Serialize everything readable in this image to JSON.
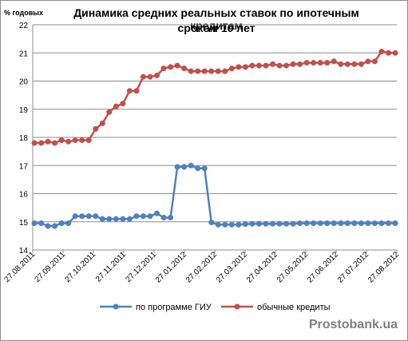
{
  "watermark": "Prostobank.ua",
  "chart_data": {
    "type": "line",
    "title": "Динамика средних реальных ставок по ипотечным кредитам сроком 10 лет",
    "title_lines": [
      "Динамика средних реальных ставок по ипотечным кредитам",
      "сроком 10 лет"
    ],
    "ylabel": "% годовых",
    "xlabel": "",
    "ylim": [
      14,
      22
    ],
    "yticks": [
      "14",
      "15",
      "16",
      "17",
      "18",
      "19",
      "20",
      "21",
      "22"
    ],
    "x_tick_labels": [
      "27.08.2011",
      "27.09.2011",
      "27.10.2011",
      "27.11.2011",
      "27.12.2011",
      "27.01.2012",
      "27.02.2012",
      "27.03.2012",
      "27.04.2012",
      "27.05.2012",
      "27.06.2012",
      "27.07.2012",
      "27.08.2012"
    ],
    "x_axis_type": "weekly dates",
    "grid": "horizontal",
    "legend_position": "bottom",
    "series": [
      {
        "name": "по программе ГИУ",
        "color": "#4f81bd",
        "values": [
          14.95,
          14.95,
          14.85,
          14.85,
          14.95,
          14.95,
          15.2,
          15.2,
          15.2,
          15.2,
          15.1,
          15.1,
          15.1,
          15.1,
          15.1,
          15.2,
          15.2,
          15.2,
          15.3,
          15.15,
          15.15,
          16.95,
          16.95,
          17.0,
          16.9,
          16.9,
          14.98,
          14.9,
          14.9,
          14.9,
          14.9,
          14.92,
          14.93,
          14.93,
          14.93,
          14.93,
          14.93,
          14.93,
          14.93,
          14.95,
          14.95,
          14.95,
          14.95,
          14.95,
          14.95,
          14.95,
          14.95,
          14.95,
          14.95,
          14.95,
          14.95,
          14.95,
          14.95,
          14.95
        ]
      },
      {
        "name": "обычные кредиты",
        "color": "#c0504d",
        "values": [
          17.8,
          17.8,
          17.85,
          17.8,
          17.9,
          17.85,
          17.9,
          17.9,
          17.9,
          18.3,
          18.5,
          18.9,
          19.1,
          19.2,
          19.65,
          19.65,
          20.15,
          20.15,
          20.2,
          20.45,
          20.5,
          20.55,
          20.45,
          20.35,
          20.35,
          20.35,
          20.35,
          20.35,
          20.35,
          20.45,
          20.5,
          20.5,
          20.55,
          20.55,
          20.55,
          20.6,
          20.55,
          20.55,
          20.6,
          20.6,
          20.65,
          20.65,
          20.65,
          20.65,
          20.7,
          20.6,
          20.6,
          20.6,
          20.6,
          20.7,
          20.7,
          21.05,
          21.0,
          21.0
        ]
      }
    ]
  }
}
